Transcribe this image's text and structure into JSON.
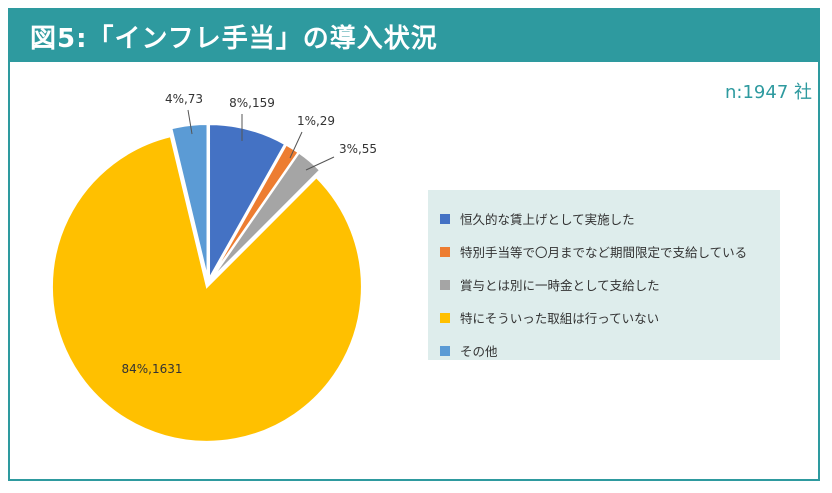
{
  "header": {
    "title": "図5:「インフレ手当」の導入状況"
  },
  "sample_note": "n:1947 社",
  "chart_data": {
    "type": "pie",
    "title": "図5:「インフレ手当」の導入状況",
    "start_angle_deg": 0,
    "direction": "clockwise",
    "slices": [
      {
        "name": "恒久的な賃上げとして実施した",
        "value": 159,
        "percent": 8,
        "label": "8%,159",
        "color": "#4472c4"
      },
      {
        "name": "特別手当等で〇月までなど期間限定で支給している",
        "value": 29,
        "percent": 1,
        "label": "1%,29",
        "color": "#ed7d31"
      },
      {
        "name": "賞与とは別に一時金として支給した",
        "value": 55,
        "percent": 3,
        "label": "3%,55",
        "color": "#a5a5a5"
      },
      {
        "name": "特にそういった取組は行っていない",
        "value": 1631,
        "percent": 84,
        "label": "84%,1631",
        "color": "#ffc000"
      },
      {
        "name": "その他",
        "value": 73,
        "percent": 4,
        "label": "4%,73",
        "color": "#5b9bd5"
      }
    ],
    "legend_position": "right"
  }
}
